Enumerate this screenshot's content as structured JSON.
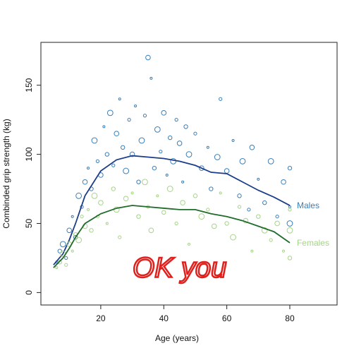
{
  "chart_data": {
    "type": "scatter",
    "xlabel": "Age (years)",
    "ylabel": "Combinded grip strength (kg)",
    "xlim": [
      1,
      95
    ],
    "ylim": [
      -9,
      181
    ],
    "xticks": [
      20,
      40,
      60,
      80
    ],
    "yticks": [
      0,
      50,
      100,
      150
    ],
    "annotation": "OK you",
    "annotation_color": "#e0201c",
    "smooth_x": [
      5,
      8,
      10,
      12,
      15,
      20,
      25,
      30,
      35,
      40,
      45,
      50,
      55,
      60,
      65,
      70,
      75,
      80
    ],
    "series": [
      {
        "name": "Males",
        "color": "#3a7fb8",
        "line_color": "#1c3d8c",
        "x": [
          6,
          7,
          8,
          9,
          10,
          11,
          12,
          13,
          14,
          15,
          16,
          17,
          18,
          19,
          20,
          21,
          22,
          23,
          24,
          25,
          26,
          27,
          28,
          29,
          30,
          31,
          32,
          33,
          34,
          35,
          36,
          37,
          38,
          39,
          40,
          41,
          42,
          43,
          44,
          45,
          46,
          47,
          48,
          50,
          52,
          54,
          55,
          57,
          58,
          60,
          62,
          64,
          65,
          67,
          68,
          70,
          72,
          74,
          76,
          78,
          80,
          80,
          80
        ],
        "values": [
          22,
          30,
          35,
          25,
          45,
          55,
          40,
          70,
          62,
          80,
          90,
          75,
          110,
          95,
          85,
          120,
          100,
          130,
          92,
          115,
          140,
          105,
          88,
          125,
          100,
          135,
          80,
          110,
          128,
          170,
          155,
          90,
          118,
          102,
          130,
          85,
          112,
          95,
          125,
          108,
          80,
          120,
          100,
          115,
          90,
          105,
          75,
          98,
          140,
          88,
          110,
          70,
          95,
          60,
          105,
          82,
          65,
          95,
          55,
          80,
          62,
          90,
          50
        ],
        "smooth_values": [
          20,
          28,
          38,
          50,
          70,
          88,
          96,
          99,
          98,
          97,
          95,
          92,
          87,
          86,
          80,
          74,
          69,
          63
        ]
      },
      {
        "name": "Females",
        "color": "#a5d488",
        "line_color": "#1f6b2a",
        "x": [
          6,
          7,
          8,
          9,
          10,
          11,
          12,
          13,
          14,
          15,
          16,
          17,
          18,
          19,
          20,
          22,
          24,
          25,
          26,
          28,
          30,
          32,
          34,
          35,
          36,
          38,
          40,
          42,
          44,
          46,
          48,
          50,
          52,
          54,
          56,
          58,
          60,
          62,
          64,
          66,
          68,
          70,
          72,
          74,
          76,
          78,
          80,
          80,
          80
        ],
        "values": [
          18,
          22,
          28,
          20,
          35,
          30,
          42,
          38,
          55,
          48,
          60,
          45,
          70,
          55,
          65,
          50,
          75,
          60,
          40,
          68,
          72,
          55,
          80,
          62,
          45,
          70,
          58,
          75,
          50,
          65,
          35,
          70,
          55,
          60,
          48,
          72,
          50,
          40,
          62,
          52,
          30,
          55,
          45,
          38,
          50,
          30,
          25,
          45,
          60
        ],
        "smooth_values": [
          18,
          25,
          32,
          40,
          50,
          57,
          61,
          63,
          62,
          61,
          60,
          60,
          57,
          55,
          52,
          48,
          44,
          36
        ]
      }
    ]
  }
}
